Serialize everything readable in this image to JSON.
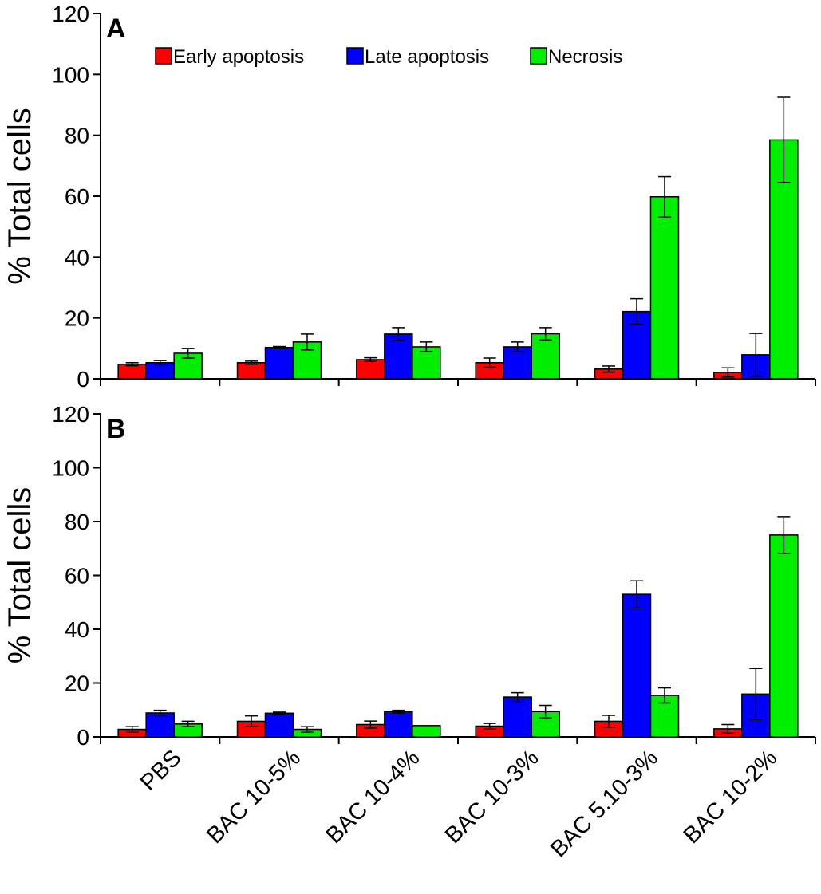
{
  "chart_data": [
    {
      "type": "bar",
      "panel_label": "A",
      "ylabel": "% Total cells",
      "ylim": [
        0,
        120
      ],
      "yticks": [
        0,
        20,
        40,
        60,
        80,
        100,
        120
      ],
      "legend_position": "top",
      "categories": [
        "PBS",
        "BAC 10-5%",
        "BAC 10-4%",
        "BAC 10-3%",
        "BAC 5.10-3%",
        "BAC 10-2%"
      ],
      "series": [
        {
          "name": "Early apoptosis",
          "color": "#ff0000",
          "values": [
            4.8,
            5.3,
            6.3,
            5.3,
            3.2,
            2.1
          ],
          "errors": [
            0.5,
            0.5,
            0.6,
            1.5,
            1.0,
            1.5
          ]
        },
        {
          "name": "Late apoptosis",
          "color": "#0000ff",
          "values": [
            5.3,
            10.3,
            14.7,
            10.5,
            22.1,
            7.9
          ],
          "errors": [
            0.7,
            0.3,
            2.1,
            1.6,
            4.2,
            7.0
          ]
        },
        {
          "name": "Necrosis",
          "color": "#00ee00",
          "values": [
            8.4,
            12.1,
            10.5,
            14.8,
            59.8,
            78.5
          ],
          "errors": [
            1.6,
            2.6,
            1.6,
            2.0,
            6.6,
            14.0
          ]
        }
      ]
    },
    {
      "type": "bar",
      "panel_label": "B",
      "ylabel": "% Total cells",
      "ylim": [
        0,
        120
      ],
      "yticks": [
        0,
        20,
        40,
        60,
        80,
        100,
        120
      ],
      "categories": [
        "PBS",
        "BAC 10-5%",
        "BAC 10-4%",
        "BAC 10-3%",
        "BAC 5.10-3%",
        "BAC 10-2%"
      ],
      "series": [
        {
          "name": "Early apoptosis",
          "color": "#ff0000",
          "values": [
            2.8,
            5.8,
            4.6,
            4.0,
            5.8,
            3.0
          ],
          "errors": [
            1.0,
            2.0,
            1.3,
            1.0,
            2.2,
            1.6
          ]
        },
        {
          "name": "Late apoptosis",
          "color": "#0000ff",
          "values": [
            8.9,
            8.8,
            9.4,
            14.8,
            53.0,
            15.9
          ],
          "errors": [
            1.0,
            0.4,
            0.5,
            1.6,
            5.0,
            9.5
          ]
        },
        {
          "name": "Necrosis",
          "color": "#00ee00",
          "values": [
            4.8,
            2.8,
            4.2,
            9.4,
            15.4,
            75.0
          ],
          "errors": [
            1.0,
            1.0,
            0,
            2.3,
            2.8,
            6.8
          ]
        }
      ]
    }
  ]
}
